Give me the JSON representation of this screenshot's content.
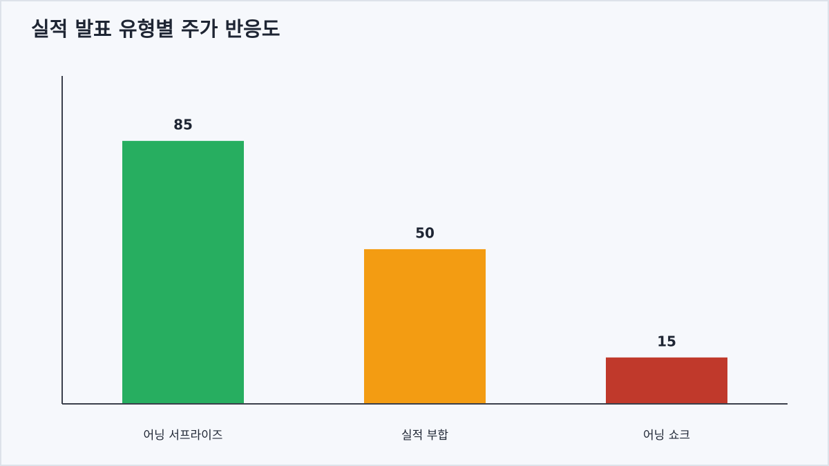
{
  "chart_data": {
    "type": "bar",
    "title": "실적 발표 유형별 주가 반응도",
    "categories": [
      "어닝 서프라이즈",
      "실적 부합",
      "어닝 쇼크"
    ],
    "values": [
      85,
      50,
      15
    ],
    "colors": [
      "#27ae60",
      "#f39c12",
      "#c0392b"
    ],
    "ylim": [
      0,
      106
    ]
  }
}
